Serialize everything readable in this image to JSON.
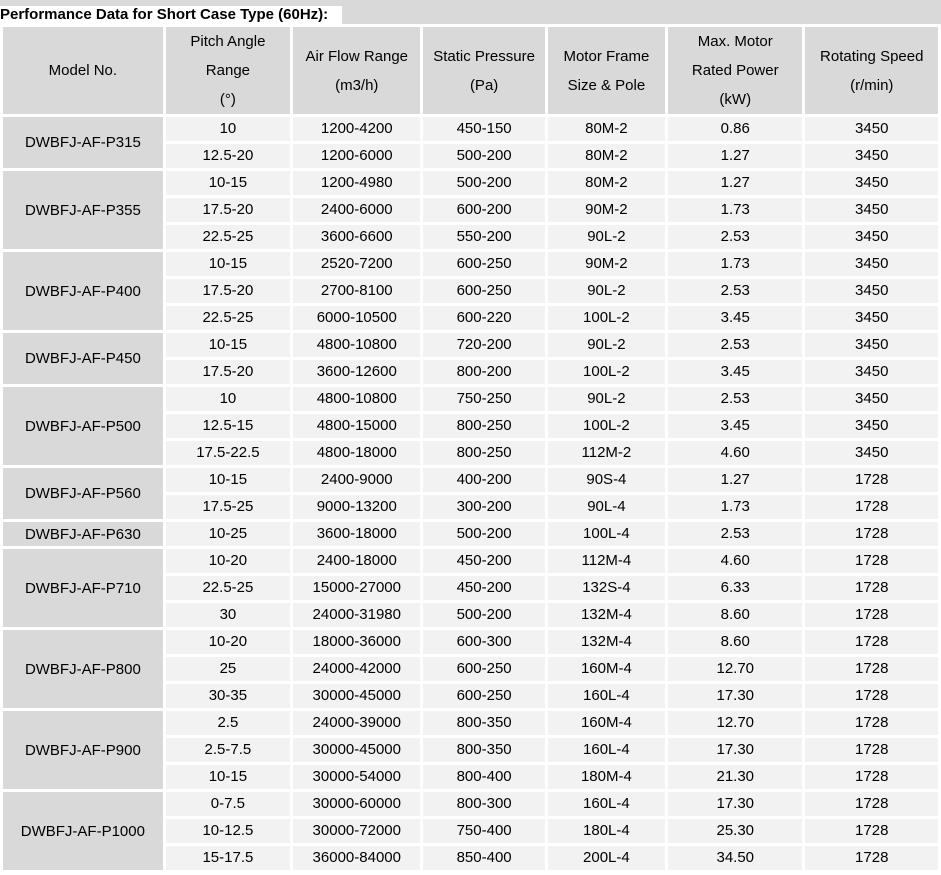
{
  "title": "Performance Data for Short Case Type (60Hz):",
  "colors": {
    "header_fill": "#d9d9d9",
    "model_fill": "#d9d9d9",
    "row_fill": "#f2f2f2",
    "grid_gap": "#ffffff",
    "text": "#000000"
  },
  "table": {
    "headers": [
      {
        "lines": [
          "Model No."
        ]
      },
      {
        "lines": [
          "Pitch Angle",
          "Range",
          "(°)"
        ]
      },
      {
        "lines": [
          "Air Flow Range",
          "(m3/h)"
        ]
      },
      {
        "lines": [
          "Static Pressure",
          "(Pa)"
        ]
      },
      {
        "lines": [
          "Motor Frame",
          "Size & Pole"
        ]
      },
      {
        "lines": [
          "Max. Motor",
          "Rated Power",
          "(kW)"
        ]
      },
      {
        "lines": [
          "Rotating Speed",
          "(r/min)"
        ]
      }
    ],
    "groups": [
      {
        "model": "DWBFJ-AF-P315",
        "rows": [
          [
            "10",
            "1200-4200",
            "450-150",
            "80M-2",
            "0.86",
            "3450"
          ],
          [
            "12.5-20",
            "1200-6000",
            "500-200",
            "80M-2",
            "1.27",
            "3450"
          ]
        ]
      },
      {
        "model": "DWBFJ-AF-P355",
        "rows": [
          [
            "10-15",
            "1200-4980",
            "500-200",
            "80M-2",
            "1.27",
            "3450"
          ],
          [
            "17.5-20",
            "2400-6000",
            "600-200",
            "90M-2",
            "1.73",
            "3450"
          ],
          [
            "22.5-25",
            "3600-6600",
            "550-200",
            "90L-2",
            "2.53",
            "3450"
          ]
        ]
      },
      {
        "model": "DWBFJ-AF-P400",
        "rows": [
          [
            "10-15",
            "2520-7200",
            "600-250",
            "90M-2",
            "1.73",
            "3450"
          ],
          [
            "17.5-20",
            "2700-8100",
            "600-250",
            "90L-2",
            "2.53",
            "3450"
          ],
          [
            "22.5-25",
            "6000-10500",
            "600-220",
            "100L-2",
            "3.45",
            "3450"
          ]
        ]
      },
      {
        "model": "DWBFJ-AF-P450",
        "rows": [
          [
            "10-15",
            "4800-10800",
            "720-200",
            "90L-2",
            "2.53",
            "3450"
          ],
          [
            "17.5-20",
            "3600-12600",
            "800-200",
            "100L-2",
            "3.45",
            "3450"
          ]
        ]
      },
      {
        "model": "DWBFJ-AF-P500",
        "rows": [
          [
            "10",
            "4800-10800",
            "750-250",
            "90L-2",
            "2.53",
            "3450"
          ],
          [
            "12.5-15",
            "4800-15000",
            "800-250",
            "100L-2",
            "3.45",
            "3450"
          ],
          [
            "17.5-22.5",
            "4800-18000",
            "800-250",
            "112M-2",
            "4.60",
            "3450"
          ]
        ]
      },
      {
        "model": "DWBFJ-AF-P560",
        "rows": [
          [
            "10-15",
            "2400-9000",
            "400-200",
            "90S-4",
            "1.27",
            "1728"
          ],
          [
            "17.5-25",
            "9000-13200",
            "300-200",
            "90L-4",
            "1.73",
            "1728"
          ]
        ]
      },
      {
        "model": "DWBFJ-AF-P630",
        "rows": [
          [
            "10-25",
            "3600-18000",
            "500-200",
            "100L-4",
            "2.53",
            "1728"
          ]
        ]
      },
      {
        "model": "DWBFJ-AF-P710",
        "rows": [
          [
            "10-20",
            "2400-18000",
            "450-200",
            "112M-4",
            "4.60",
            "1728"
          ],
          [
            "22.5-25",
            "15000-27000",
            "450-200",
            "132S-4",
            "6.33",
            "1728"
          ],
          [
            "30",
            "24000-31980",
            "500-200",
            "132M-4",
            "8.60",
            "1728"
          ]
        ]
      },
      {
        "model": "DWBFJ-AF-P800",
        "rows": [
          [
            "10-20",
            "18000-36000",
            "600-300",
            "132M-4",
            "8.60",
            "1728"
          ],
          [
            "25",
            "24000-42000",
            "600-250",
            "160M-4",
            "12.70",
            "1728"
          ],
          [
            "30-35",
            "30000-45000",
            "600-250",
            "160L-4",
            "17.30",
            "1728"
          ]
        ]
      },
      {
        "model": "DWBFJ-AF-P900",
        "rows": [
          [
            "2.5",
            "24000-39000",
            "800-350",
            "160M-4",
            "12.70",
            "1728"
          ],
          [
            "2.5-7.5",
            "30000-45000",
            "800-350",
            "160L-4",
            "17.30",
            "1728"
          ],
          [
            "10-15",
            "30000-54000",
            "800-400",
            "180M-4",
            "21.30",
            "1728"
          ]
        ]
      },
      {
        "model": "DWBFJ-AF-P1000",
        "rows": [
          [
            "0-7.5",
            "30000-60000",
            "800-300",
            "160L-4",
            "17.30",
            "1728"
          ],
          [
            "10-12.5",
            "30000-72000",
            "750-400",
            "180L-4",
            "25.30",
            "1728"
          ],
          [
            "15-17.5",
            "36000-84000",
            "850-400",
            "200L-4",
            "34.50",
            "1728"
          ]
        ]
      }
    ]
  }
}
